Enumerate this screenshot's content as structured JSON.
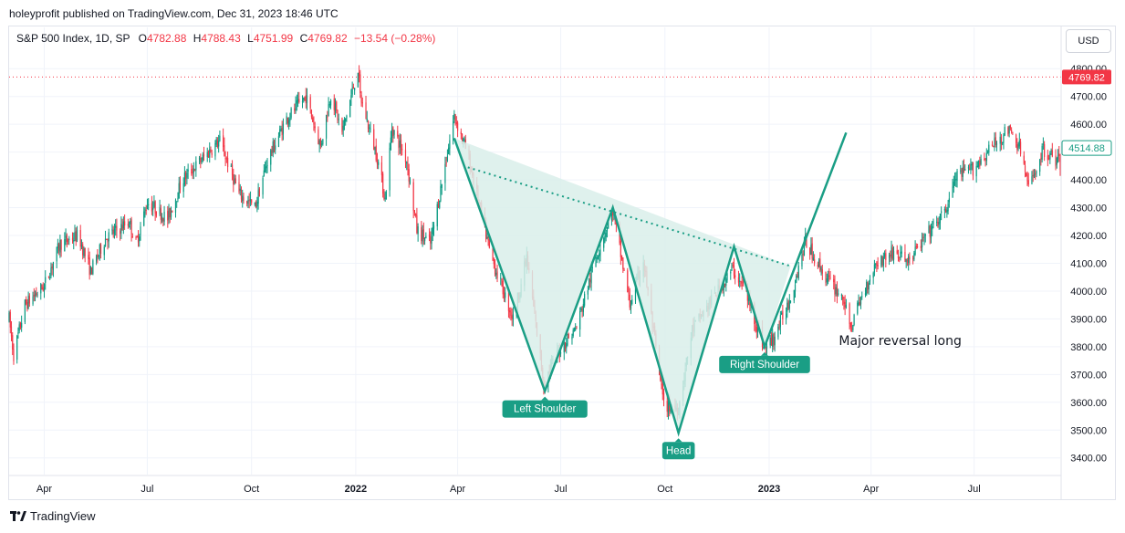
{
  "publisher_line": "holeyprofit published on TradingView.com, Dec 31, 2023 18:46 UTC",
  "legend": {
    "symbol": "S&P 500 Index, 1D, SP",
    "o_label": "O",
    "o_value": "4782.88",
    "h_label": "H",
    "h_value": "4788.43",
    "l_label": "L",
    "l_value": "4751.99",
    "c_label": "C",
    "c_value": "4769.82",
    "change": "−13.54 (−0.28%)"
  },
  "currency_button": "USD",
  "footer_brand": "TradingView",
  "colors": {
    "up": "#089981",
    "down": "#f23645",
    "pattern": "#1a9e85",
    "fill": "#d9efea",
    "grid": "#f0f3fa"
  },
  "chart_data": {
    "type": "candlestick",
    "title": "S&P 500 Index, 1D, SP",
    "ylim": [
      3340,
      4850
    ],
    "y_ticks": [
      3400,
      3500,
      3600,
      3700,
      3800,
      3900,
      4000,
      4100,
      4200,
      4300,
      4400,
      4500,
      4600,
      4700,
      4800
    ],
    "y_tick_labels": [
      "3400.00",
      "3500.00",
      "3600.00",
      "3700.00",
      "3800.00",
      "3900.00",
      "4000.00",
      "4100.00",
      "4200.00",
      "4300.00",
      "4400.00",
      "4500.00",
      "4600.00",
      "4700.00",
      "4800.00"
    ],
    "x_range": [
      "2021-03-01",
      "2023-09-15"
    ],
    "x_ticks": [
      {
        "label": "Apr",
        "date": "2021-04-01",
        "bold": false
      },
      {
        "label": "Jul",
        "date": "2021-07-01",
        "bold": false
      },
      {
        "label": "Oct",
        "date": "2021-10-01",
        "bold": false
      },
      {
        "label": "2022",
        "date": "2022-01-01",
        "bold": true
      },
      {
        "label": "Apr",
        "date": "2022-04-01",
        "bold": false
      },
      {
        "label": "Jul",
        "date": "2022-07-01",
        "bold": false
      },
      {
        "label": "Oct",
        "date": "2022-10-01",
        "bold": false
      },
      {
        "label": "2023",
        "date": "2023-01-01",
        "bold": true
      },
      {
        "label": "Apr",
        "date": "2023-04-01",
        "bold": false
      },
      {
        "label": "Jul",
        "date": "2023-07-01",
        "bold": false
      }
    ],
    "price_path": [
      [
        "2021-03-01",
        3900
      ],
      [
        "2021-03-05",
        3770
      ],
      [
        "2021-03-15",
        3950
      ],
      [
        "2021-04-01",
        4020
      ],
      [
        "2021-04-15",
        4170
      ],
      [
        "2021-05-01",
        4200
      ],
      [
        "2021-05-12",
        4070
      ],
      [
        "2021-05-25",
        4190
      ],
      [
        "2021-06-15",
        4250
      ],
      [
        "2021-06-21",
        4170
      ],
      [
        "2021-07-01",
        4320
      ],
      [
        "2021-07-19",
        4260
      ],
      [
        "2021-08-01",
        4400
      ],
      [
        "2021-08-15",
        4460
      ],
      [
        "2021-08-31",
        4530
      ],
      [
        "2021-09-03",
        4540
      ],
      [
        "2021-09-20",
        4350
      ],
      [
        "2021-10-04",
        4300
      ],
      [
        "2021-10-15",
        4470
      ],
      [
        "2021-11-01",
        4620
      ],
      [
        "2021-11-18",
        4700
      ],
      [
        "2021-12-01",
        4520
      ],
      [
        "2021-12-10",
        4710
      ],
      [
        "2021-12-20",
        4570
      ],
      [
        "2022-01-03",
        4800
      ],
      [
        "2022-01-05",
        4700
      ],
      [
        "2022-01-20",
        4480
      ],
      [
        "2022-01-27",
        4330
      ],
      [
        "2022-02-02",
        4590
      ],
      [
        "2022-02-15",
        4470
      ],
      [
        "2022-02-24",
        4220
      ],
      [
        "2022-03-08",
        4170
      ],
      [
        "2022-03-29",
        4630
      ],
      [
        "2022-04-10",
        4490
      ],
      [
        "2022-04-30",
        4130
      ],
      [
        "2022-05-20",
        3900
      ],
      [
        "2022-06-01",
        4120
      ],
      [
        "2022-06-16",
        3670
      ],
      [
        "2022-06-30",
        3790
      ],
      [
        "2022-07-15",
        3870
      ],
      [
        "2022-08-01",
        4120
      ],
      [
        "2022-08-16",
        4290
      ],
      [
        "2022-08-31",
        3950
      ],
      [
        "2022-09-12",
        4110
      ],
      [
        "2022-09-30",
        3590
      ],
      [
        "2022-10-13",
        3580
      ],
      [
        "2022-10-25",
        3860
      ],
      [
        "2022-11-10",
        3960
      ],
      [
        "2022-11-30",
        4080
      ],
      [
        "2022-12-12",
        3990
      ],
      [
        "2022-12-28",
        3790
      ],
      [
        "2023-01-05",
        3830
      ],
      [
        "2023-01-20",
        3980
      ],
      [
        "2023-02-02",
        4180
      ],
      [
        "2023-02-20",
        4050
      ],
      [
        "2023-03-08",
        3970
      ],
      [
        "2023-03-13",
        3860
      ],
      [
        "2023-03-22",
        3960
      ],
      [
        "2023-04-05",
        4100
      ],
      [
        "2023-04-20",
        4140
      ],
      [
        "2023-05-05",
        4110
      ],
      [
        "2023-05-20",
        4200
      ],
      [
        "2023-06-05",
        4280
      ],
      [
        "2023-06-15",
        4410
      ],
      [
        "2023-06-30",
        4440
      ],
      [
        "2023-07-15",
        4510
      ],
      [
        "2023-07-31",
        4580
      ],
      [
        "2023-08-10",
        4520
      ],
      [
        "2023-08-18",
        4370
      ],
      [
        "2023-08-31",
        4510
      ],
      [
        "2023-09-15",
        4460
      ]
    ],
    "last_price": 4769.82,
    "last_price_label": "4769.82",
    "last_price_color": "#f23645",
    "ma_price_label": "4514.88",
    "ma_price": 4514.88,
    "pattern": {
      "name": "Inverse Head and Shoulders",
      "zigzag": [
        [
          "2022-03-29",
          4550
        ],
        [
          "2022-06-17",
          3640
        ],
        [
          "2022-08-16",
          4300
        ],
        [
          "2022-10-13",
          3490
        ],
        [
          "2022-12-01",
          4160
        ],
        [
          "2022-12-28",
          3800
        ],
        [
          "2023-03-10",
          4570
        ]
      ],
      "neckline": [
        [
          "2022-04-10",
          4445
        ],
        [
          "2023-01-20",
          4090
        ]
      ]
    },
    "annotations": [
      {
        "text": "Left Shoulder",
        "date": "2022-06-17",
        "price": 3640
      },
      {
        "text": "Head",
        "date": "2022-10-13",
        "price": 3490
      },
      {
        "text": "Right Shoulder",
        "date": "2022-12-28",
        "price": 3800
      },
      {
        "text": "Major reversal long",
        "date": "2023-03-10",
        "price": 3820
      }
    ]
  }
}
